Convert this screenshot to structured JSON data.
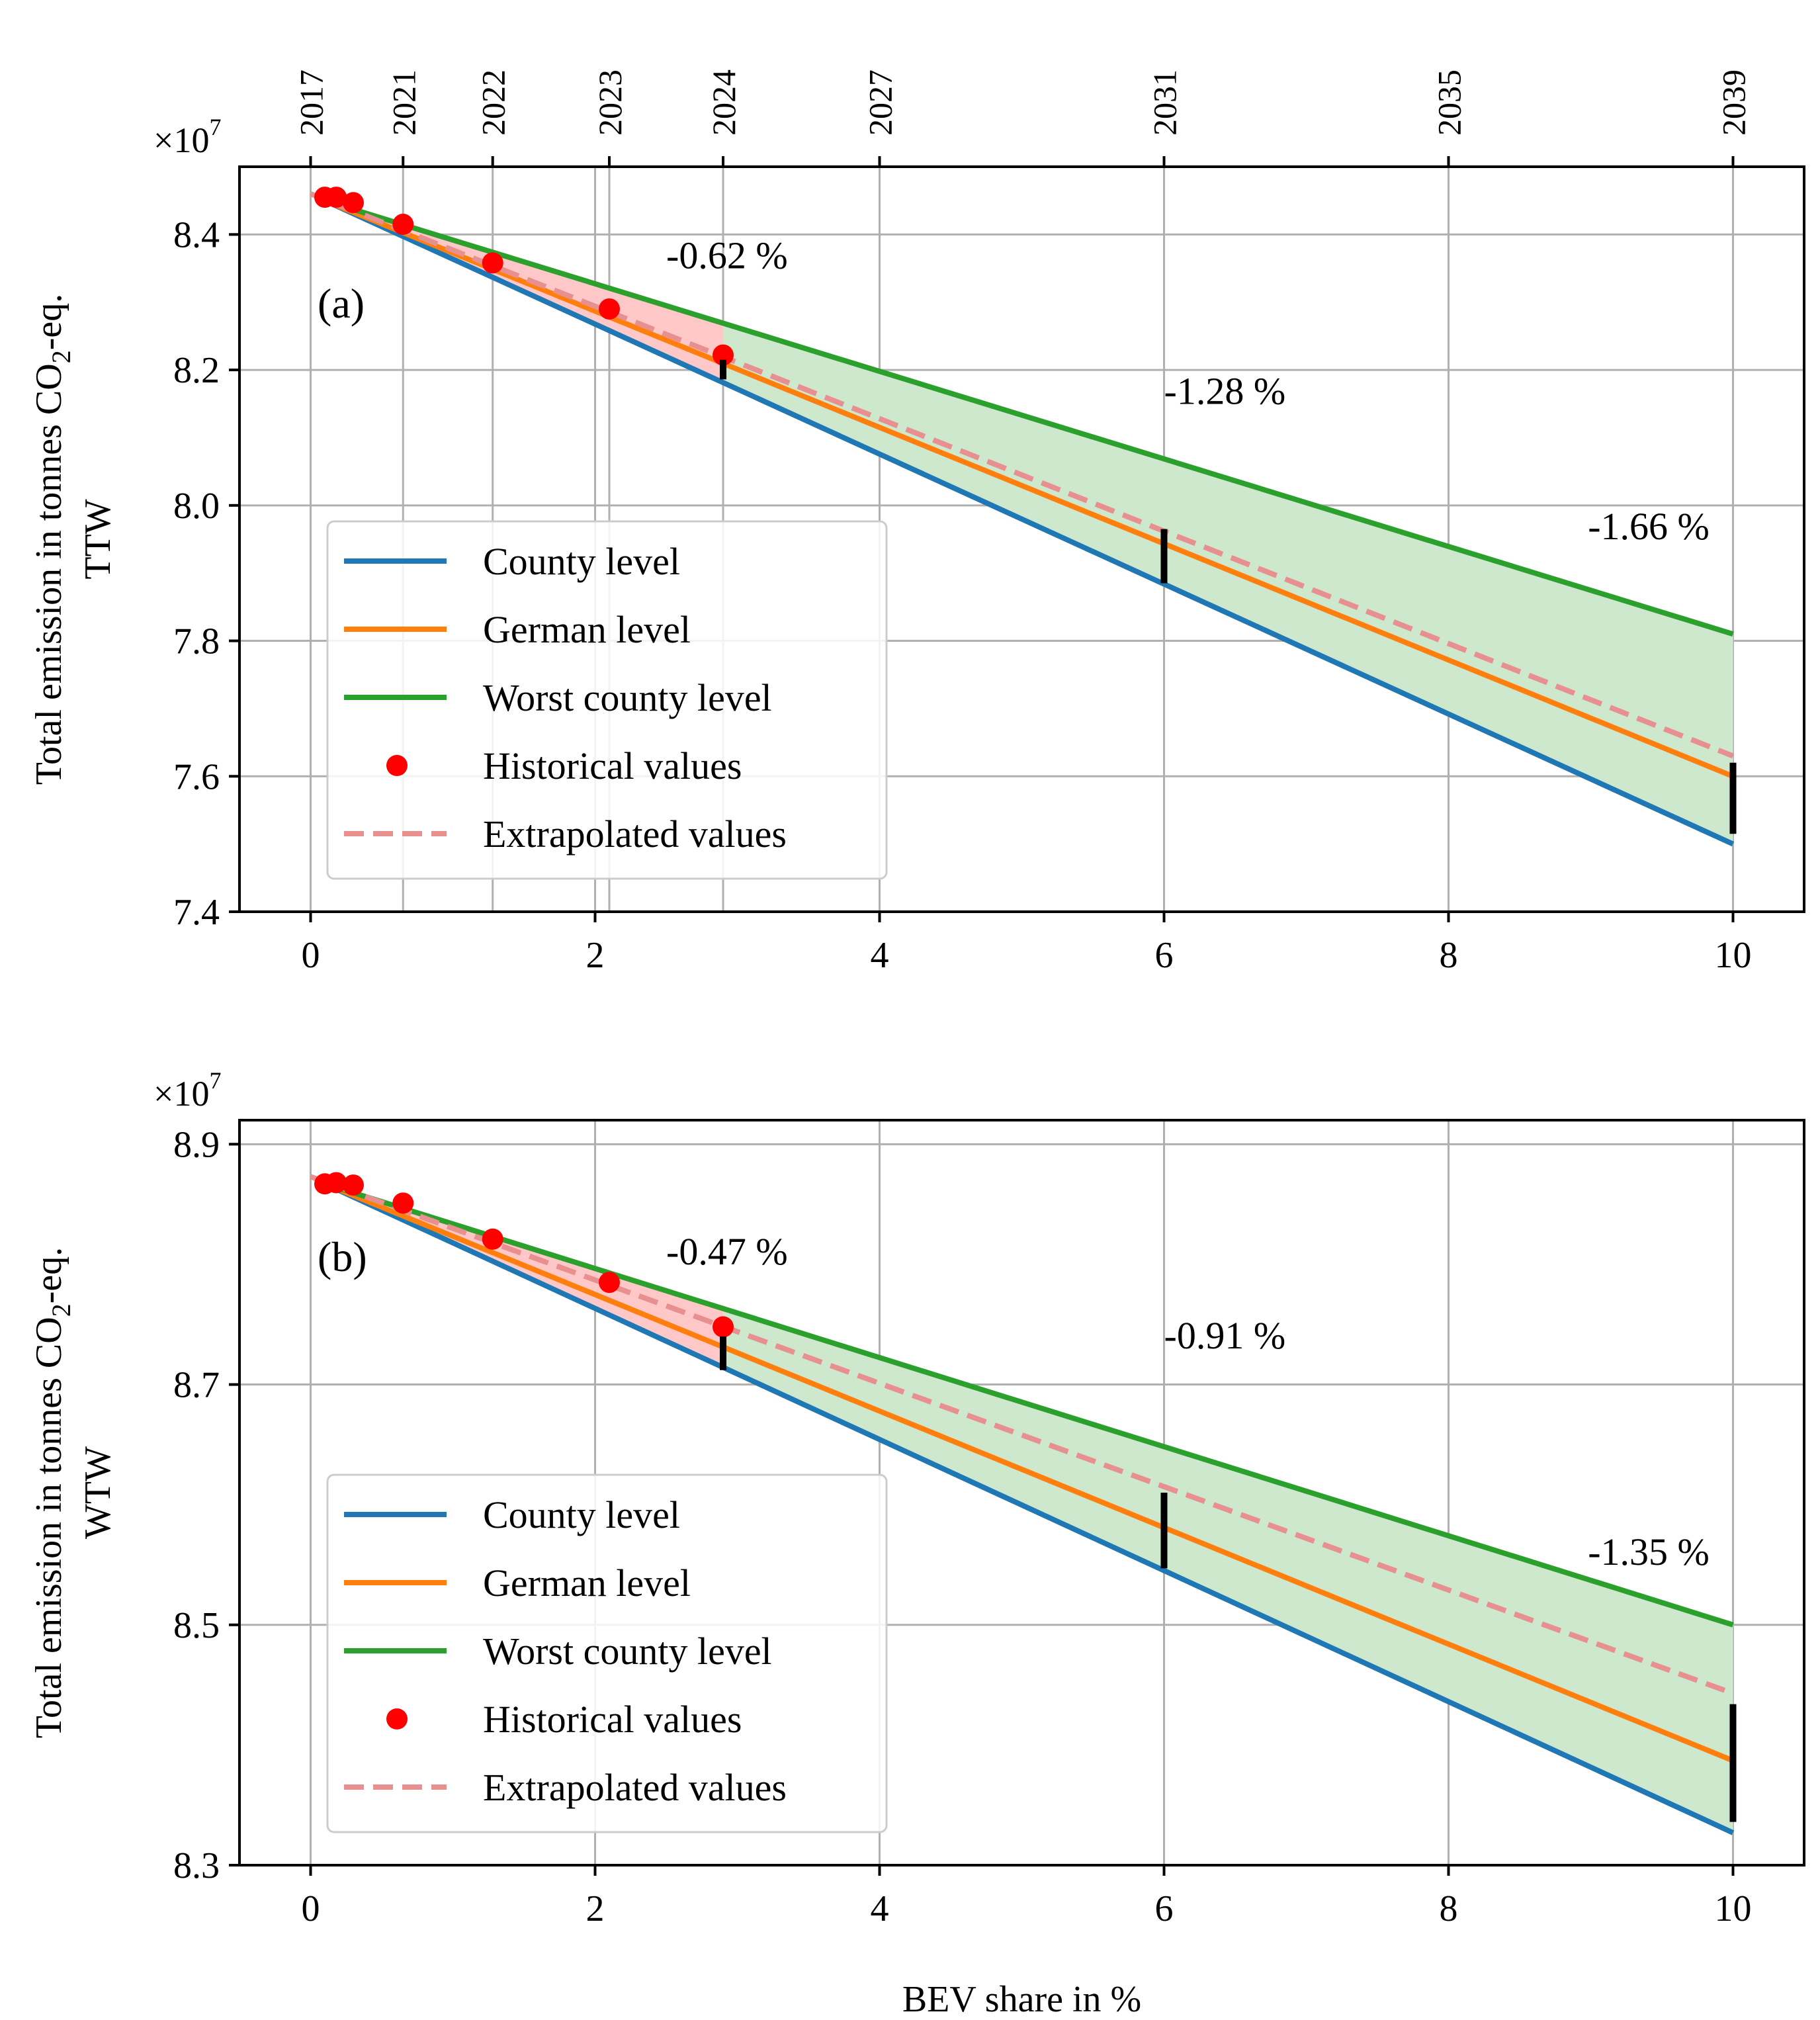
{
  "figure": {
    "xlabel": "BEV share in %",
    "x_ticks": [
      0,
      2,
      4,
      6,
      8,
      10
    ],
    "top_year_ticks": [
      {
        "x": 0.0,
        "label": "2017"
      },
      {
        "x": 0.65,
        "label": "2021"
      },
      {
        "x": 1.28,
        "label": "2022"
      },
      {
        "x": 2.1,
        "label": "2023"
      },
      {
        "x": 2.9,
        "label": "2024"
      },
      {
        "x": 4.0,
        "label": "2027"
      },
      {
        "x": 6.0,
        "label": "2031"
      },
      {
        "x": 8.0,
        "label": "2035"
      },
      {
        "x": 10.0,
        "label": "2039"
      }
    ],
    "colors": {
      "county": "#1f77b4",
      "german": "#ff7f0e",
      "worst": "#2ca02c",
      "historical": "#ff0000",
      "extrapolated": "#e8908f",
      "fill_red": "#ffc8c8",
      "fill_green": "#cde8cd",
      "grid": "#b0b0b0"
    }
  },
  "chart_data": [
    {
      "type": "line",
      "panel_label": "(a)",
      "ylabel": "Total emission in tonnes CO₂-eq.",
      "ylabel2": "TTW",
      "ylabel_parts": [
        "Total emission in tonnes CO",
        "2",
        "-eq."
      ],
      "y_multiplier": "×10",
      "y_multiplier_exp": "7",
      "xlim": [
        -0.5,
        10.5
      ],
      "ylim": [
        7.4,
        8.5
      ],
      "y_ticks": [
        7.4,
        7.6,
        7.8,
        8.0,
        8.2,
        8.4
      ],
      "y_tick_labels": [
        "7.4",
        "7.6",
        "7.8",
        "8.0",
        "8.2",
        "8.4"
      ],
      "series": [
        {
          "name": "County level",
          "x": [
            0.1,
            10
          ],
          "y": [
            8.45,
            7.5
          ]
        },
        {
          "name": "German level",
          "x": [
            0.1,
            10
          ],
          "y": [
            8.45,
            7.6
          ]
        },
        {
          "name": "Worst county level",
          "x": [
            0.1,
            10
          ],
          "y": [
            8.45,
            7.81
          ]
        },
        {
          "name": "Historical values",
          "x": [
            0.1,
            0.18,
            0.3,
            0.65,
            1.28,
            2.1,
            2.9
          ],
          "y": [
            8.455,
            8.455,
            8.447,
            8.415,
            8.358,
            8.29,
            8.222
          ]
        },
        {
          "name": "Extrapolated values",
          "x": [
            0,
            10
          ],
          "y": [
            8.46,
            7.63
          ]
        }
      ],
      "error_bars": [
        {
          "x": 2.9,
          "y0": 8.186,
          "y1": 8.215
        },
        {
          "x": 6.0,
          "y0": 7.885,
          "y1": 7.965
        },
        {
          "x": 10.0,
          "y0": 7.515,
          "y1": 7.62
        }
      ],
      "annotations": [
        {
          "x": 2.5,
          "y": 8.35,
          "text": "-0.62 %"
        },
        {
          "x": 6.0,
          "y": 8.15,
          "text": "-1.28 %"
        },
        {
          "x": 8.98,
          "y": 7.95,
          "text": "-1.66 %"
        }
      ]
    },
    {
      "type": "line",
      "panel_label": "(b)",
      "ylabel": "Total emission in tonnes CO₂-eq.",
      "ylabel2": "WTW",
      "ylabel_parts": [
        "Total emission in tonnes CO",
        "2",
        "-eq."
      ],
      "y_multiplier": "×10",
      "y_multiplier_exp": "7",
      "xlim": [
        -0.5,
        10.5
      ],
      "ylim": [
        8.3,
        8.92
      ],
      "y_ticks": [
        8.3,
        8.5,
        8.7,
        8.9
      ],
      "y_tick_labels": [
        "8.3",
        "8.5",
        "8.7",
        "8.9"
      ],
      "series": [
        {
          "name": "County level",
          "x": [
            0.1,
            10
          ],
          "y": [
            8.867,
            8.327
          ]
        },
        {
          "name": "German level",
          "x": [
            0.1,
            10
          ],
          "y": [
            8.867,
            8.387
          ]
        },
        {
          "name": "Worst county level",
          "x": [
            0.1,
            10
          ],
          "y": [
            8.867,
            8.5
          ]
        },
        {
          "name": "Historical values",
          "x": [
            0.1,
            0.18,
            0.3,
            0.65,
            1.28,
            2.1,
            2.9
          ],
          "y": [
            8.867,
            8.868,
            8.866,
            8.851,
            8.821,
            8.785,
            8.748
          ]
        },
        {
          "name": "Extrapolated values",
          "x": [
            0,
            10
          ],
          "y": [
            8.873,
            8.443
          ]
        }
      ],
      "error_bars": [
        {
          "x": 2.9,
          "y0": 8.712,
          "y1": 8.74
        },
        {
          "x": 6.0,
          "y0": 8.547,
          "y1": 8.61
        },
        {
          "x": 10.0,
          "y0": 8.336,
          "y1": 8.434
        }
      ],
      "annotations": [
        {
          "x": 2.5,
          "y": 8.8,
          "text": "-0.47 %"
        },
        {
          "x": 6.0,
          "y": 8.73,
          "text": "-0.91 %"
        },
        {
          "x": 8.98,
          "y": 8.55,
          "text": "-1.35 %"
        }
      ]
    }
  ]
}
